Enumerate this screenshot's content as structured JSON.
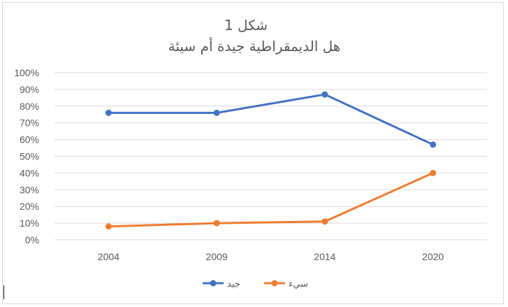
{
  "chart_data": {
    "type": "line",
    "title": "شكل 1",
    "subtitle": "هل الديمقراطية جيدة أم سيئة",
    "x": [
      "2004",
      "2009",
      "2014",
      "2020"
    ],
    "series": [
      {
        "name": "جيد",
        "color": "#4472c4",
        "values": [
          0.76,
          0.76,
          0.87,
          0.57
        ]
      },
      {
        "name": "سيء",
        "color": "#ed7d31",
        "values": [
          0.08,
          0.1,
          0.11,
          0.4
        ]
      }
    ],
    "ylim": [
      0,
      1
    ],
    "y_ticks": [
      "0%",
      "10%",
      "20%",
      "30%",
      "40%",
      "50%",
      "60%",
      "70%",
      "80%",
      "90%",
      "100%"
    ],
    "grid": true,
    "legend_position": "bottom"
  }
}
